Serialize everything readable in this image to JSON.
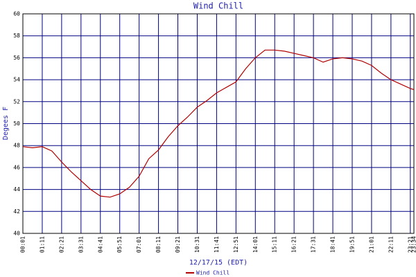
{
  "chart_data": {
    "type": "line",
    "title": "Wind Chill",
    "ylabel": "Degees F",
    "xlabel": "12/17/15 (EDT)",
    "x": [
      1,
      36,
      71,
      106,
      141,
      176,
      211,
      246,
      281,
      316,
      351,
      386,
      421,
      456,
      491,
      526,
      561,
      596,
      631,
      666,
      701,
      736,
      771,
      806,
      841,
      876,
      911,
      946,
      981,
      1016,
      1051,
      1086,
      1121,
      1156,
      1191,
      1226,
      1261,
      1296,
      1331,
      1366,
      1401,
      1414
    ],
    "series": [
      {
        "name": "Wind Chill",
        "color": "#b00000",
        "values": [
          47.9,
          47.8,
          47.9,
          47.5,
          46.5,
          45.6,
          44.8,
          44.0,
          43.4,
          43.3,
          43.6,
          44.2,
          45.2,
          46.8,
          47.6,
          48.8,
          49.8,
          50.6,
          51.5,
          52.1,
          52.8,
          53.3,
          53.8,
          55.0,
          56.0,
          56.7,
          56.7,
          56.6,
          56.4,
          56.2,
          56.0,
          55.6,
          55.9,
          56.0,
          55.9,
          55.7,
          55.3,
          54.6,
          54.0,
          53.6,
          53.2,
          53.1
        ]
      }
    ],
    "xlim": [
      1,
      1414
    ],
    "ylim": [
      40,
      60
    ],
    "xticks": [
      {
        "value": 1,
        "label": "00:01"
      },
      {
        "value": 71,
        "label": "01:11"
      },
      {
        "value": 141,
        "label": "02:21"
      },
      {
        "value": 211,
        "label": "03:31"
      },
      {
        "value": 281,
        "label": "04:41"
      },
      {
        "value": 351,
        "label": "05:51"
      },
      {
        "value": 421,
        "label": "07:01"
      },
      {
        "value": 491,
        "label": "08:11"
      },
      {
        "value": 561,
        "label": "09:21"
      },
      {
        "value": 631,
        "label": "10:31"
      },
      {
        "value": 701,
        "label": "11:41"
      },
      {
        "value": 771,
        "label": "12:51"
      },
      {
        "value": 841,
        "label": "14:01"
      },
      {
        "value": 911,
        "label": "15:11"
      },
      {
        "value": 981,
        "label": "16:21"
      },
      {
        "value": 1051,
        "label": "17:31"
      },
      {
        "value": 1121,
        "label": "18:41"
      },
      {
        "value": 1191,
        "label": "19:51"
      },
      {
        "value": 1261,
        "label": "21:01"
      },
      {
        "value": 1331,
        "label": "22:11"
      },
      {
        "value": 1401,
        "label": "23:21"
      },
      {
        "value": 1414,
        "label": "23:34"
      }
    ],
    "yticks": [
      40,
      42,
      44,
      46,
      48,
      50,
      52,
      54,
      56,
      58,
      60
    ],
    "grid": true,
    "grid_color": "#000080"
  }
}
